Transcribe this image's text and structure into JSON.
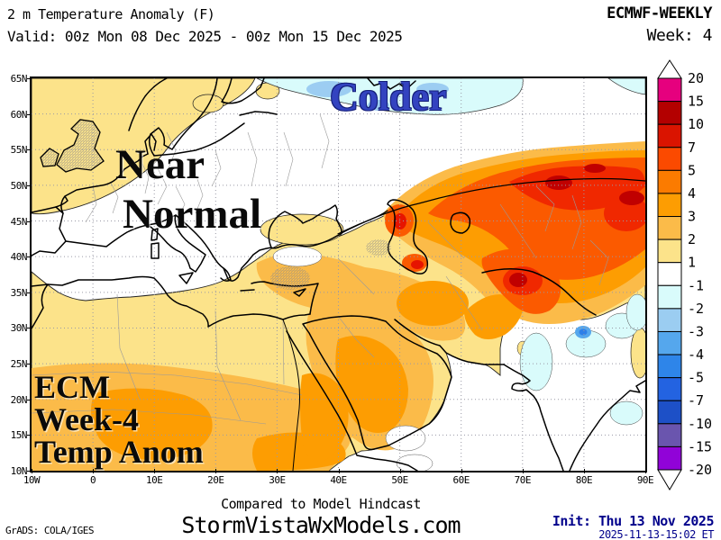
{
  "header": {
    "title": "2 m Temperature Anomaly (F)",
    "model": "ECMWF-WEEKLY",
    "valid": "Valid: 00z Mon 08 Dec 2025 - 00z Mon 15 Dec 2025",
    "week": "Week: 4"
  },
  "map": {
    "annotations": {
      "colder": "Colder",
      "near_line1": "Near",
      "near_line2": "Normal",
      "corner_line1": "ECM",
      "corner_line2": "Week-4",
      "corner_line3": "Temp Anom"
    },
    "lat_labels": [
      "65N",
      "60N",
      "55N",
      "50N",
      "45N",
      "40N",
      "35N",
      "30N",
      "25N",
      "20N",
      "15N",
      "10N"
    ],
    "lon_labels": [
      "10W",
      "0",
      "10E",
      "20E",
      "30E",
      "40E",
      "50E",
      "60E",
      "70E",
      "80E",
      "90E"
    ]
  },
  "colorbar": {
    "tick_labels": [
      "20",
      "15",
      "10",
      "7",
      "5",
      "4",
      "3",
      "2",
      "1",
      "-1",
      "-2",
      "-3",
      "-4",
      "-5",
      "-7",
      "-10",
      "-15",
      "-20"
    ],
    "colors": [
      "#e6007e",
      "#b30000",
      "#da1400",
      "#fb4a00",
      "#fb7b00",
      "#fd9d02",
      "#fbbb49",
      "#fce38a",
      "#ffffff",
      "#d9fbfb",
      "#9bcdf1",
      "#55a7ed",
      "#2e85e9",
      "#2363e1",
      "#1d50c7",
      "#6a55ae",
      "#9103d8"
    ]
  },
  "footer": {
    "hindcast_note": "Compared to Model Hindcast",
    "site": "StormVistaWxModels.com",
    "grads_credit": "GrADS: COLA/IGES",
    "init": "Init: Thu 13 Nov 2025",
    "init_timestamp": "2025-11-13-15:02 ET",
    "accent_color": "#00008b"
  }
}
